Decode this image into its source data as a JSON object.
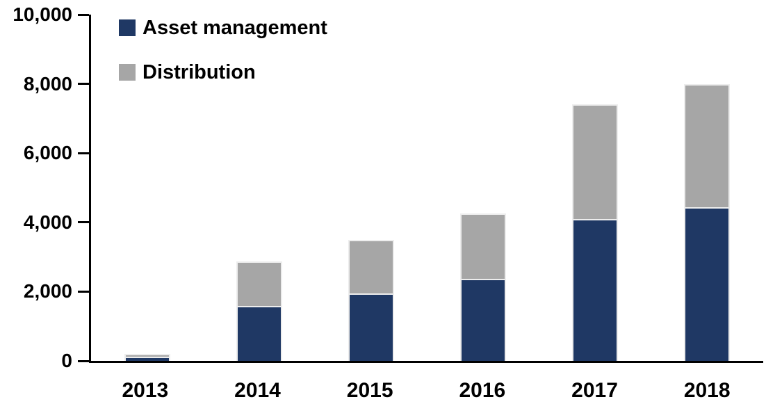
{
  "chart_data": {
    "type": "bar",
    "stacked": true,
    "title": "",
    "xlabel": "",
    "ylabel": "",
    "categories": [
      "2013",
      "2014",
      "2015",
      "2016",
      "2017",
      "2018"
    ],
    "series": [
      {
        "name": "Asset management",
        "color": "#1f3864",
        "values": [
          80,
          1550,
          1900,
          2320,
          4050,
          4400
        ]
      },
      {
        "name": "Distribution",
        "color": "#a6a6a6",
        "values": [
          120,
          1320,
          1600,
          1930,
          3350,
          3600
        ]
      }
    ],
    "totals": [
      200,
      2870,
      3500,
      4250,
      7400,
      8000
    ],
    "ylim": [
      0,
      10000
    ],
    "ytick_interval": 2000,
    "ytick_labels": [
      "0",
      "2,000",
      "4,000",
      "6,000",
      "8,000",
      "10,000"
    ],
    "grid": false,
    "legend_position": "top-left-inside",
    "axis_color": "#000000",
    "background_color": "#ffffff"
  }
}
